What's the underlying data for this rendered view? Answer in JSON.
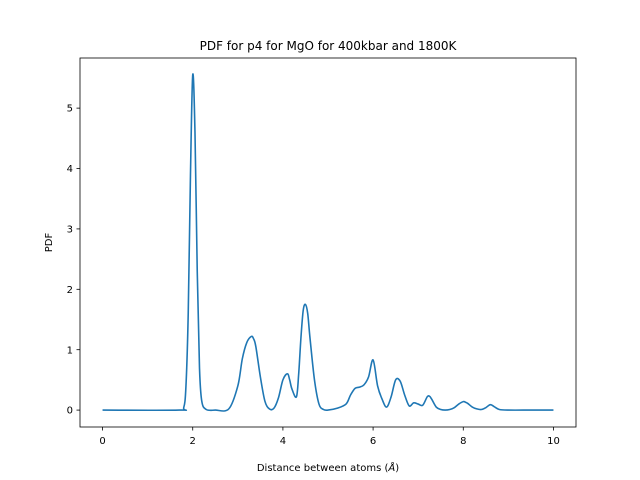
{
  "chart_data": {
    "type": "line",
    "title": "PDF for p4 for MgO for 400kbar and 1800K",
    "xlabel": "Distance between atoms (",
    "xlabel_unit": "Å",
    "xlabel_end": ")",
    "ylabel": "PDF",
    "xlim": [
      -0.5,
      10.5
    ],
    "ylim": [
      -0.28,
      5.83
    ],
    "x_ticks": [
      0,
      2,
      4,
      6,
      8,
      10
    ],
    "y_ticks": [
      0,
      1,
      2,
      3,
      4,
      5
    ],
    "grid": false,
    "legend": "none",
    "line_color": "#1f77b4",
    "series": [
      {
        "x": [
          0.0,
          1.7,
          1.8,
          1.85,
          1.9,
          1.95,
          2.0,
          2.05,
          2.1,
          2.15,
          2.2,
          2.3,
          2.5,
          2.8,
          3.0,
          3.1,
          3.2,
          3.3,
          3.35,
          3.4,
          3.5,
          3.6,
          3.7,
          3.8,
          3.9,
          4.0,
          4.1,
          4.15,
          4.2,
          4.3,
          4.35,
          4.4,
          4.45,
          4.5,
          4.55,
          4.6,
          4.7,
          4.8,
          4.9,
          5.0,
          5.2,
          5.4,
          5.5,
          5.6,
          5.7,
          5.8,
          5.9,
          6.0,
          6.1,
          6.2,
          6.3,
          6.4,
          6.5,
          6.6,
          6.7,
          6.8,
          6.9,
          7.0,
          7.1,
          7.2,
          7.25,
          7.3,
          7.4,
          7.5,
          7.6,
          7.7,
          7.8,
          7.9,
          8.0,
          8.05,
          8.1,
          8.2,
          8.3,
          8.4,
          8.5,
          8.6,
          8.7,
          8.8,
          9.0,
          9.5,
          10.0
        ],
        "y": [
          0.0,
          0.0,
          0.04,
          0.4,
          1.6,
          3.9,
          5.55,
          4.6,
          2.3,
          0.7,
          0.15,
          0.01,
          0.0,
          0.02,
          0.4,
          0.85,
          1.12,
          1.22,
          1.18,
          1.05,
          0.55,
          0.15,
          0.02,
          0.03,
          0.2,
          0.5,
          0.6,
          0.5,
          0.35,
          0.22,
          0.6,
          1.2,
          1.65,
          1.75,
          1.6,
          1.2,
          0.5,
          0.1,
          0.01,
          0.0,
          0.03,
          0.1,
          0.25,
          0.36,
          0.38,
          0.42,
          0.55,
          0.83,
          0.4,
          0.18,
          0.05,
          0.22,
          0.5,
          0.48,
          0.25,
          0.07,
          0.12,
          0.1,
          0.08,
          0.22,
          0.23,
          0.18,
          0.05,
          0.01,
          0.0,
          0.01,
          0.04,
          0.1,
          0.14,
          0.13,
          0.11,
          0.05,
          0.02,
          0.01,
          0.04,
          0.09,
          0.05,
          0.01,
          0.0,
          0.0,
          0.0
        ]
      }
    ]
  }
}
